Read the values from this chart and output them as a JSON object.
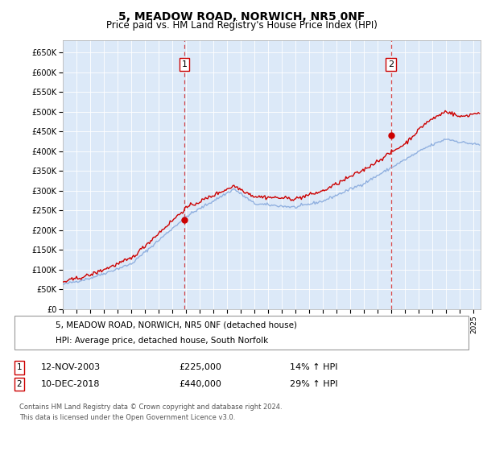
{
  "title": "5, MEADOW ROAD, NORWICH, NR5 0NF",
  "subtitle": "Price paid vs. HM Land Registry's House Price Index (HPI)",
  "title_fontsize": 10,
  "subtitle_fontsize": 8.5,
  "plot_bg_color": "#dce9f8",
  "yticks": [
    0,
    50000,
    100000,
    150000,
    200000,
    250000,
    300000,
    350000,
    400000,
    450000,
    500000,
    550000,
    600000,
    650000
  ],
  "ytick_labels": [
    "£0",
    "£50K",
    "£100K",
    "£150K",
    "£200K",
    "£250K",
    "£300K",
    "£350K",
    "£400K",
    "£450K",
    "£500K",
    "£550K",
    "£600K",
    "£650K"
  ],
  "xmin": 1995.0,
  "xmax": 2025.5,
  "ymin": 0,
  "ymax": 680000,
  "legend_labels": [
    "5, MEADOW ROAD, NORWICH, NR5 0NF (detached house)",
    "HPI: Average price, detached house, South Norfolk"
  ],
  "legend_colors": [
    "#cc0000",
    "#88aadd"
  ],
  "sale1_x": 2003.87,
  "sale1_y": 225000,
  "sale2_x": 2018.95,
  "sale2_y": 440000,
  "annotation1": [
    "1",
    "12-NOV-2003",
    "£225,000",
    "14% ↑ HPI"
  ],
  "annotation2": [
    "2",
    "10-DEC-2018",
    "£440,000",
    "29% ↑ HPI"
  ],
  "footer": [
    "Contains HM Land Registry data © Crown copyright and database right 2024.",
    "This data is licensed under the Open Government Licence v3.0."
  ],
  "hpi_color": "#88aadd",
  "price_color": "#cc0000"
}
